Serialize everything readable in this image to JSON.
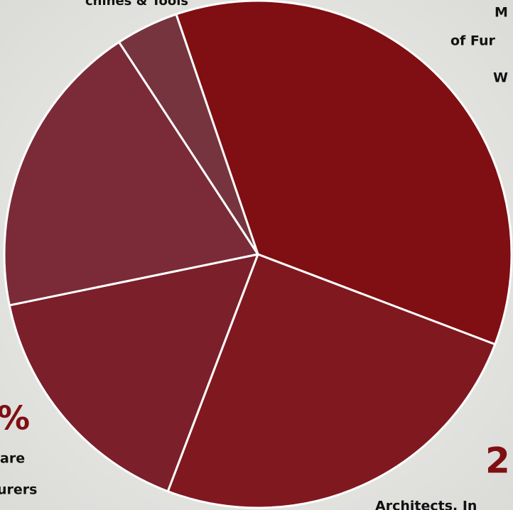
{
  "chart_data": {
    "type": "pie",
    "values": [
      36,
      25,
      16,
      19,
      4
    ],
    "colors": [
      "#7f0f12",
      "#801820",
      "#7b1f2a",
      "#7a2b37",
      "#76343f"
    ],
    "annotations": [
      "chines & Tools",
      "M",
      "of Fur",
      "W",
      "%",
      "are",
      "urers",
      "2",
      "Architects, In"
    ]
  }
}
